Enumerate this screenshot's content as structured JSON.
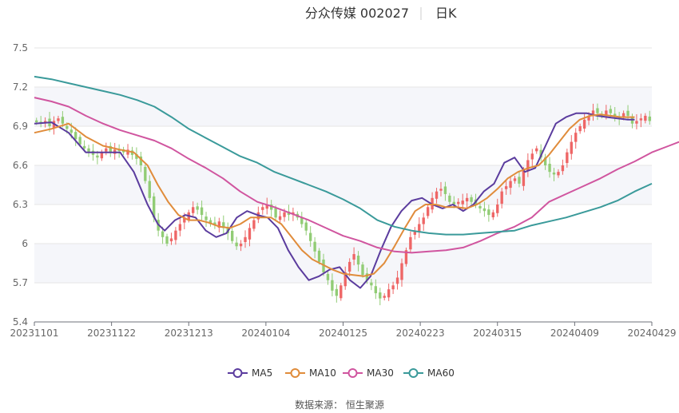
{
  "title": {
    "stock": "分众传媒 002027",
    "period": "日K"
  },
  "source_text": "数据来源：  恒生聚源",
  "chart_data": {
    "type": "candlestick",
    "ylim": [
      5.4,
      7.5
    ],
    "y_ticks": [
      "5.4",
      "5.7",
      "6",
      "6.3",
      "6.6",
      "6.9",
      "7.2",
      "7.5"
    ],
    "x_ticks": [
      "20231101",
      "20231122",
      "20231213",
      "20240104",
      "20240125",
      "20240223",
      "20240315",
      "20240409",
      "20240429"
    ],
    "grid": true,
    "legend_position": "bottom",
    "colors": {
      "up": "#ee6666",
      "down": "#91cc75",
      "band": "#f5f6fa",
      "grid": "#e6e6e6"
    },
    "close": [
      6.93,
      6.92,
      6.94,
      6.9,
      6.94,
      6.96,
      6.92,
      6.88,
      6.85,
      6.8,
      6.76,
      6.73,
      6.7,
      6.68,
      6.66,
      6.7,
      6.73,
      6.7,
      6.72,
      6.71,
      6.7,
      6.72,
      6.68,
      6.65,
      6.6,
      6.48,
      6.35,
      6.2,
      6.1,
      6.05,
      6.0,
      6.04,
      6.1,
      6.15,
      6.2,
      6.24,
      6.28,
      6.26,
      6.22,
      6.18,
      6.15,
      6.14,
      6.17,
      6.12,
      6.08,
      6.02,
      5.98,
      6.0,
      6.05,
      6.12,
      6.18,
      6.24,
      6.28,
      6.3,
      6.26,
      6.2,
      6.21,
      6.24,
      6.22,
      6.24,
      6.2,
      6.15,
      6.1,
      6.02,
      5.94,
      5.86,
      5.78,
      5.72,
      5.64,
      5.6,
      5.68,
      5.78,
      5.86,
      5.92,
      5.84,
      5.76,
      5.72,
      5.68,
      5.62,
      5.58,
      5.6,
      5.65,
      5.68,
      5.74,
      5.85,
      5.95,
      6.05,
      6.1,
      6.15,
      6.2,
      6.28,
      6.35,
      6.4,
      6.42,
      6.38,
      6.32,
      6.3,
      6.32,
      6.33,
      6.35,
      6.32,
      6.3,
      6.27,
      6.25,
      6.22,
      6.24,
      6.3,
      6.4,
      6.44,
      6.48,
      6.5,
      6.46,
      6.56,
      6.64,
      6.69,
      6.73,
      6.66,
      6.6,
      6.55,
      6.53,
      6.55,
      6.6,
      6.7,
      6.78,
      6.85,
      6.9,
      6.95,
      6.98,
      7.02,
      7.0,
      6.98,
      7.02,
      7.0,
      6.98,
      6.96,
      7.0,
      6.98,
      6.92,
      6.94,
      6.96,
      6.98,
      6.94
    ],
    "series": [
      {
        "name": "MA5",
        "color": "#5b3c9e",
        "points": [
          [
            0,
            6.92
          ],
          [
            5,
            6.93
          ],
          [
            10,
            6.85
          ],
          [
            15,
            6.7
          ],
          [
            20,
            6.7
          ],
          [
            25,
            6.7
          ],
          [
            29,
            6.55
          ],
          [
            33,
            6.3
          ],
          [
            36,
            6.15
          ],
          [
            38,
            6.1
          ],
          [
            41,
            6.18
          ],
          [
            44,
            6.22
          ],
          [
            47,
            6.2
          ],
          [
            50,
            6.1
          ],
          [
            53,
            6.05
          ],
          [
            56,
            6.08
          ],
          [
            59,
            6.2
          ],
          [
            62,
            6.25
          ],
          [
            65,
            6.22
          ],
          [
            68,
            6.2
          ],
          [
            71,
            6.12
          ],
          [
            74,
            5.95
          ],
          [
            77,
            5.82
          ],
          [
            80,
            5.72
          ],
          [
            83,
            5.75
          ],
          [
            86,
            5.8
          ],
          [
            89,
            5.82
          ],
          [
            92,
            5.72
          ],
          [
            95,
            5.66
          ],
          [
            98,
            5.75
          ],
          [
            101,
            5.95
          ],
          [
            104,
            6.13
          ],
          [
            107,
            6.25
          ],
          [
            110,
            6.33
          ],
          [
            113,
            6.35
          ],
          [
            116,
            6.3
          ],
          [
            119,
            6.27
          ],
          [
            122,
            6.3
          ],
          [
            125,
            6.25
          ],
          [
            128,
            6.3
          ],
          [
            131,
            6.4
          ],
          [
            134,
            6.46
          ],
          [
            137,
            6.62
          ],
          [
            140,
            6.66
          ],
          [
            143,
            6.55
          ],
          [
            146,
            6.58
          ],
          [
            149,
            6.75
          ],
          [
            152,
            6.92
          ],
          [
            155,
            6.97
          ],
          [
            158,
            7.0
          ],
          [
            161,
            7.0
          ],
          [
            164,
            6.98
          ],
          [
            167,
            6.97
          ],
          [
            170,
            6.96
          ],
          [
            173,
            6.95
          ],
          [
            175,
            6.95
          ]
        ]
      },
      {
        "name": "MA10",
        "color": "#e08c3b",
        "points": [
          [
            0,
            6.85
          ],
          [
            5,
            6.88
          ],
          [
            10,
            6.92
          ],
          [
            15,
            6.82
          ],
          [
            20,
            6.75
          ],
          [
            25,
            6.72
          ],
          [
            29,
            6.7
          ],
          [
            33,
            6.6
          ],
          [
            36,
            6.45
          ],
          [
            39,
            6.32
          ],
          [
            42,
            6.22
          ],
          [
            45,
            6.18
          ],
          [
            48,
            6.18
          ],
          [
            51,
            6.16
          ],
          [
            54,
            6.13
          ],
          [
            57,
            6.12
          ],
          [
            60,
            6.15
          ],
          [
            63,
            6.2
          ],
          [
            66,
            6.2
          ],
          [
            69,
            6.2
          ],
          [
            72,
            6.15
          ],
          [
            75,
            6.05
          ],
          [
            78,
            5.95
          ],
          [
            81,
            5.88
          ],
          [
            84,
            5.84
          ],
          [
            87,
            5.8
          ],
          [
            90,
            5.77
          ],
          [
            93,
            5.76
          ],
          [
            96,
            5.75
          ],
          [
            99,
            5.77
          ],
          [
            102,
            5.85
          ],
          [
            105,
            5.98
          ],
          [
            108,
            6.12
          ],
          [
            111,
            6.25
          ],
          [
            114,
            6.3
          ],
          [
            117,
            6.3
          ],
          [
            120,
            6.28
          ],
          [
            123,
            6.28
          ],
          [
            126,
            6.27
          ],
          [
            129,
            6.3
          ],
          [
            132,
            6.35
          ],
          [
            135,
            6.42
          ],
          [
            138,
            6.5
          ],
          [
            141,
            6.55
          ],
          [
            144,
            6.58
          ],
          [
            147,
            6.6
          ],
          [
            150,
            6.68
          ],
          [
            153,
            6.78
          ],
          [
            156,
            6.88
          ],
          [
            159,
            6.95
          ],
          [
            162,
            6.98
          ],
          [
            165,
            6.99
          ],
          [
            168,
            6.98
          ],
          [
            171,
            6.97
          ],
          [
            174,
            6.97
          ],
          [
            175,
            6.97
          ]
        ]
      },
      {
        "name": "MA30",
        "color": "#d0559f",
        "points": [
          [
            0,
            7.12
          ],
          [
            5,
            7.09
          ],
          [
            10,
            7.05
          ],
          [
            15,
            6.98
          ],
          [
            20,
            6.92
          ],
          [
            25,
            6.87
          ],
          [
            30,
            6.83
          ],
          [
            35,
            6.79
          ],
          [
            40,
            6.73
          ],
          [
            45,
            6.65
          ],
          [
            50,
            6.58
          ],
          [
            55,
            6.5
          ],
          [
            60,
            6.4
          ],
          [
            65,
            6.32
          ],
          [
            70,
            6.28
          ],
          [
            75,
            6.23
          ],
          [
            80,
            6.18
          ],
          [
            85,
            6.12
          ],
          [
            90,
            6.06
          ],
          [
            95,
            6.02
          ],
          [
            100,
            5.97
          ],
          [
            105,
            5.94
          ],
          [
            110,
            5.93
          ],
          [
            115,
            5.94
          ],
          [
            120,
            5.95
          ],
          [
            125,
            5.97
          ],
          [
            130,
            6.02
          ],
          [
            135,
            6.08
          ],
          [
            140,
            6.13
          ],
          [
            145,
            6.2
          ],
          [
            150,
            6.32
          ],
          [
            155,
            6.38
          ],
          [
            160,
            6.44
          ],
          [
            165,
            6.5
          ],
          [
            170,
            6.57
          ],
          [
            175,
            6.63
          ],
          [
            180,
            6.7
          ],
          [
            185,
            6.75
          ],
          [
            190,
            6.8
          ]
        ]
      },
      {
        "name": "MA60",
        "color": "#3a9a9a",
        "points": [
          [
            0,
            7.28
          ],
          [
            5,
            7.26
          ],
          [
            10,
            7.23
          ],
          [
            15,
            7.2
          ],
          [
            20,
            7.17
          ],
          [
            25,
            7.14
          ],
          [
            30,
            7.1
          ],
          [
            35,
            7.05
          ],
          [
            40,
            6.97
          ],
          [
            45,
            6.88
          ],
          [
            50,
            6.81
          ],
          [
            55,
            6.74
          ],
          [
            60,
            6.67
          ],
          [
            65,
            6.62
          ],
          [
            70,
            6.55
          ],
          [
            75,
            6.5
          ],
          [
            80,
            6.45
          ],
          [
            85,
            6.4
          ],
          [
            90,
            6.34
          ],
          [
            95,
            6.27
          ],
          [
            100,
            6.18
          ],
          [
            105,
            6.13
          ],
          [
            110,
            6.1
          ],
          [
            115,
            6.08
          ],
          [
            120,
            6.07
          ],
          [
            125,
            6.07
          ],
          [
            130,
            6.08
          ],
          [
            135,
            6.09
          ],
          [
            140,
            6.1
          ],
          [
            145,
            6.14
          ],
          [
            150,
            6.17
          ],
          [
            155,
            6.2
          ],
          [
            160,
            6.24
          ],
          [
            165,
            6.28
          ],
          [
            170,
            6.33
          ],
          [
            175,
            6.4
          ],
          [
            180,
            6.46
          ]
        ]
      }
    ]
  }
}
